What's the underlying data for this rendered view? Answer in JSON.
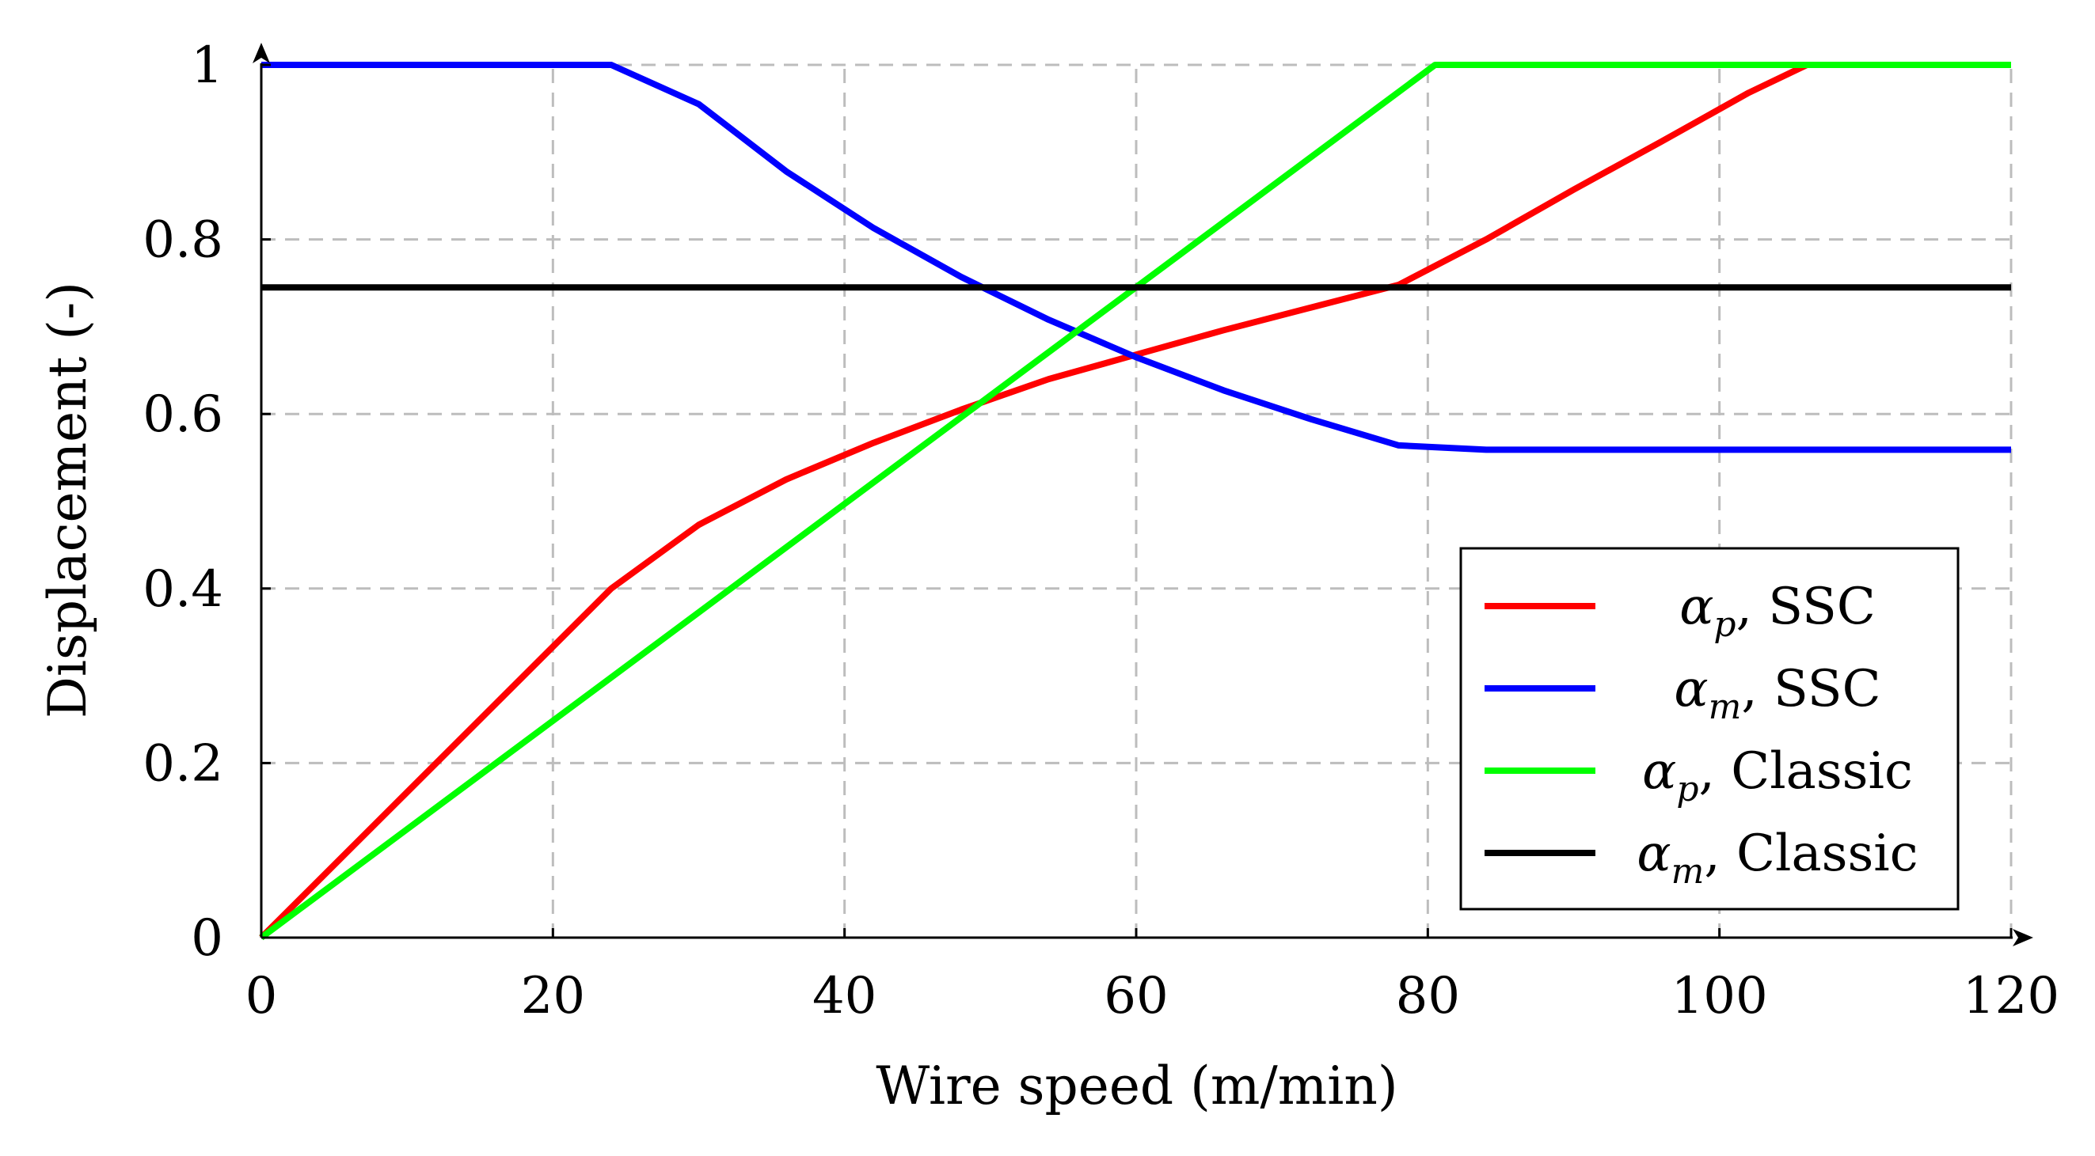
{
  "chart_data": {
    "type": "line",
    "title": "",
    "xlabel": "Wire speed (m/min)",
    "ylabel": "Displacement (-)",
    "xlim": [
      0,
      120
    ],
    "ylim": [
      0,
      1
    ],
    "x_ticks": [
      0,
      20,
      40,
      60,
      80,
      100,
      120
    ],
    "y_ticks": [
      0,
      0.2,
      0.4,
      0.6,
      0.8,
      1
    ],
    "x_tick_labels": [
      "0",
      "20",
      "40",
      "60",
      "80",
      "100",
      "120"
    ],
    "y_tick_labels": [
      "0",
      "0.2",
      "0.4",
      "0.6",
      "0.8",
      "1"
    ],
    "grid": true,
    "legend_position": "bottom-right",
    "series": [
      {
        "name": "α_p, SSC",
        "symbol": "α",
        "subscript": "p",
        "label": "SSC",
        "color": "#ff0000",
        "points": [
          [
            0,
            0
          ],
          [
            24,
            0.4
          ],
          [
            30,
            0.473
          ],
          [
            36,
            0.525
          ],
          [
            42,
            0.567
          ],
          [
            48,
            0.605
          ],
          [
            54,
            0.64
          ],
          [
            60,
            0.668
          ],
          [
            66,
            0.696
          ],
          [
            72,
            0.722
          ],
          [
            78,
            0.748
          ],
          [
            84,
            0.8
          ],
          [
            90,
            0.857
          ],
          [
            96,
            0.912
          ],
          [
            102,
            0.968
          ],
          [
            106,
            1
          ],
          [
            120,
            1
          ]
        ]
      },
      {
        "name": "α_m, SSC",
        "symbol": "α",
        "subscript": "m",
        "label": "SSC",
        "color": "#0000ff",
        "points": [
          [
            0,
            1
          ],
          [
            24,
            1
          ],
          [
            30,
            0.955
          ],
          [
            36,
            0.878
          ],
          [
            42,
            0.813
          ],
          [
            48,
            0.757
          ],
          [
            54,
            0.708
          ],
          [
            60,
            0.665
          ],
          [
            66,
            0.627
          ],
          [
            72,
            0.594
          ],
          [
            78,
            0.564
          ],
          [
            84,
            0.559
          ],
          [
            120,
            0.559
          ]
        ]
      },
      {
        "name": "α_p, Classic",
        "symbol": "α",
        "subscript": "p",
        "label": "Classic",
        "color": "#00ff00",
        "points": [
          [
            0,
            0
          ],
          [
            80.5,
            1
          ],
          [
            120,
            1
          ]
        ]
      },
      {
        "name": "α_m, Classic",
        "symbol": "α",
        "subscript": "m",
        "label": "Classic",
        "color": "#000000",
        "points": [
          [
            0,
            0.745
          ],
          [
            120,
            0.745
          ]
        ]
      }
    ]
  }
}
